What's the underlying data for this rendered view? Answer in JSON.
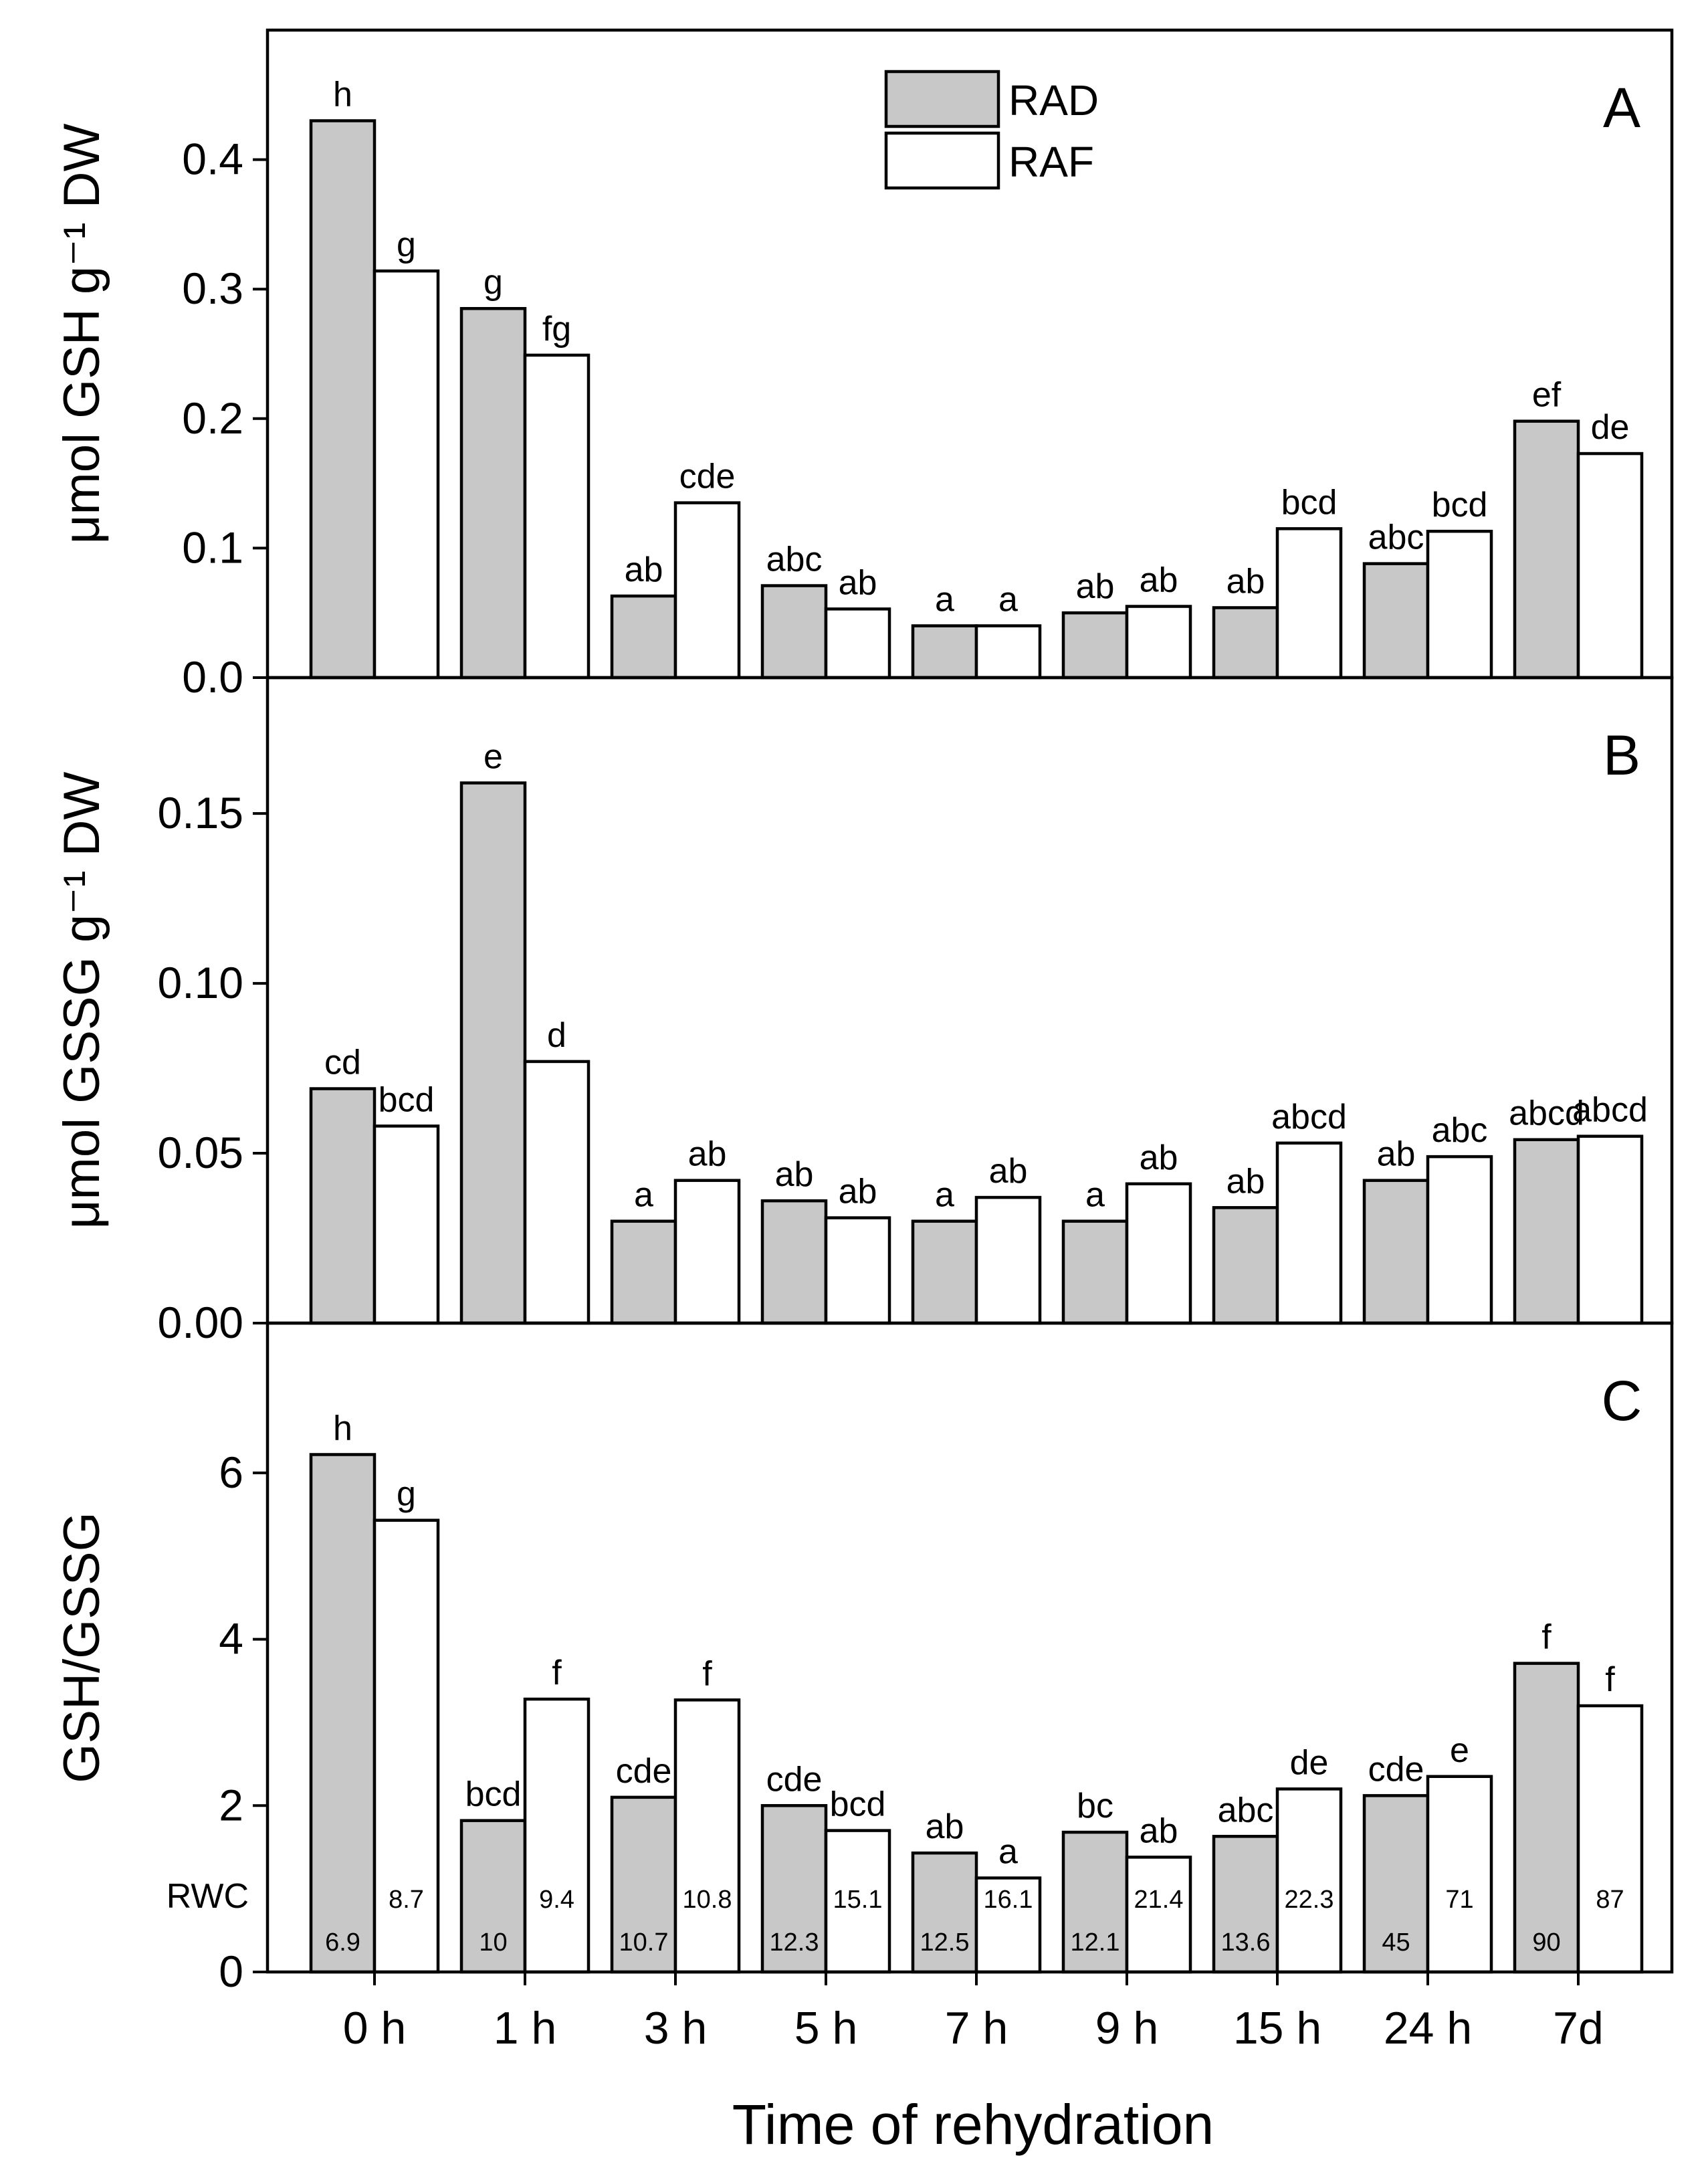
{
  "chart_data": {
    "type": "bar",
    "xlabel": "Time of rehydration",
    "categories": [
      "0 h",
      "1 h",
      "3 h",
      "5 h",
      "7 h",
      "9 h",
      "15 h",
      "24 h",
      "7d"
    ],
    "legend": {
      "position": "top-center",
      "entries": [
        "RAD",
        "RAF"
      ]
    },
    "colors": {
      "RAD": "#c8c8c8",
      "RAF": "#ffffff",
      "outline": "#000000"
    },
    "panels": [
      {
        "letter": "A",
        "ylabel": "μmol GSH g⁻¹ DW",
        "ylim": [
          0,
          0.5
        ],
        "yticks": [
          "0.0",
          "0.1",
          "0.2",
          "0.3",
          "0.4"
        ],
        "series": [
          {
            "name": "RAD",
            "values": [
              0.43,
              0.285,
              0.063,
              0.071,
              0.04,
              0.05,
              0.054,
              0.088,
              0.198
            ],
            "letters": [
              "h",
              "g",
              "ab",
              "abc",
              "a",
              "ab",
              "ab",
              "abc",
              "ef"
            ]
          },
          {
            "name": "RAF",
            "values": [
              0.314,
              0.249,
              0.135,
              0.053,
              0.04,
              0.055,
              0.115,
              0.113,
              0.173
            ],
            "letters": [
              "g",
              "fg",
              "cde",
              "ab",
              "a",
              "ab",
              "bcd",
              "bcd",
              "de"
            ]
          }
        ]
      },
      {
        "letter": "B",
        "ylabel": "μmol GSSG g⁻¹ DW",
        "ylim": [
          0,
          0.19
        ],
        "yticks": [
          "0.00",
          "0.05",
          "0.10",
          "0.15"
        ],
        "series": [
          {
            "name": "RAD",
            "values": [
              0.069,
              0.159,
              0.03,
              0.036,
              0.03,
              0.03,
              0.034,
              0.042,
              0.054
            ],
            "letters": [
              "cd",
              "e",
              "a",
              "ab",
              "a",
              "a",
              "ab",
              "ab",
              "abcd"
            ]
          },
          {
            "name": "RAF",
            "values": [
              0.058,
              0.077,
              0.042,
              0.031,
              0.037,
              0.041,
              0.053,
              0.049,
              0.055
            ],
            "letters": [
              "bcd",
              "d",
              "ab",
              "ab",
              "ab",
              "ab",
              "abcd",
              "abc",
              "abcd"
            ]
          }
        ]
      },
      {
        "letter": "C",
        "ylabel": "GSH/GSSG",
        "ylim": [
          0,
          7.8
        ],
        "yticks": [
          "0",
          "2",
          "4",
          "6"
        ],
        "series": [
          {
            "name": "RAD",
            "values": [
              6.22,
              1.82,
              2.1,
              2.0,
              1.43,
              1.68,
              1.63,
              2.12,
              3.71
            ],
            "letters": [
              "h",
              "bcd",
              "cde",
              "cde",
              "ab",
              "bc",
              "abc",
              "cde",
              "f"
            ]
          },
          {
            "name": "RAF",
            "values": [
              5.43,
              3.28,
              3.27,
              1.7,
              1.13,
              1.38,
              2.2,
              2.35,
              3.2
            ],
            "letters": [
              "g",
              "f",
              "f",
              "bcd",
              "a",
              "ab",
              "de",
              "e",
              "f"
            ]
          }
        ],
        "rwc": {
          "label": "RWC",
          "RAD": [
            "6.9",
            "10",
            "10.7",
            "12.3",
            "12.5",
            "12.1",
            "13.6",
            "45",
            "90"
          ],
          "RAF": [
            "8.7",
            "9.4",
            "10.8",
            "15.1",
            "16.1",
            "21.4",
            "22.3",
            "71",
            "87"
          ]
        }
      }
    ]
  }
}
